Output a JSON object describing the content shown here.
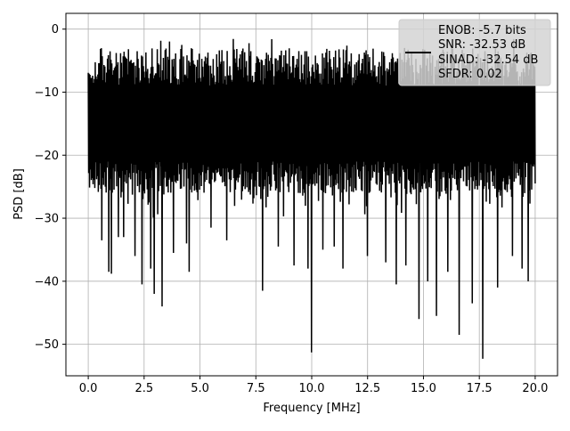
{
  "chart_data": {
    "type": "line",
    "title": "",
    "xlabel": "Frequency [MHz]",
    "ylabel": "PSD [dB]",
    "xlim": [
      -1.0,
      21.0
    ],
    "ylim": [
      -55.0,
      2.5
    ],
    "xticks": [
      0.0,
      2.5,
      5.0,
      7.5,
      10.0,
      12.5,
      15.0,
      17.5,
      20.0
    ],
    "xtick_labels": [
      "0.0",
      "2.5",
      "5.0",
      "7.5",
      "10.0",
      "12.5",
      "15.0",
      "17.5",
      "20.0"
    ],
    "yticks": [
      0,
      -10,
      -20,
      -30,
      -40,
      -50
    ],
    "ytick_labels": [
      "0",
      "−10",
      "−20",
      "−30",
      "−40",
      "−50"
    ],
    "grid": true,
    "line_color": "#000000",
    "legend": {
      "placement": "upper-right",
      "entries": [
        "ENOB: -5.7 bits",
        "SNR: -32.53 dB",
        "SINAD: -32.54 dB",
        "SFDR: 0.02"
      ]
    },
    "series": [
      {
        "x_range": [
          0.0,
          20.0
        ],
        "points": 1024,
        "band_top_db": -3,
        "band_bottom_db": -26,
        "notches": [
          {
            "x": 0.6,
            "y": -33.5
          },
          {
            "x": 0.9,
            "y": -38.5
          },
          {
            "x": 1.05,
            "y": -38.8
          },
          {
            "x": 1.35,
            "y": -33.0
          },
          {
            "x": 1.6,
            "y": -33.0
          },
          {
            "x": 2.1,
            "y": -36.0
          },
          {
            "x": 2.4,
            "y": -40.5
          },
          {
            "x": 2.8,
            "y": -38.0
          },
          {
            "x": 2.95,
            "y": -42.0
          },
          {
            "x": 3.3,
            "y": -44.0
          },
          {
            "x": 3.8,
            "y": -35.5
          },
          {
            "x": 4.4,
            "y": -34.0
          },
          {
            "x": 4.5,
            "y": -38.5
          },
          {
            "x": 5.5,
            "y": -31.5
          },
          {
            "x": 6.2,
            "y": -33.5
          },
          {
            "x": 7.8,
            "y": -41.5
          },
          {
            "x": 8.5,
            "y": -34.5
          },
          {
            "x": 9.2,
            "y": -37.5
          },
          {
            "x": 9.85,
            "y": -38.0
          },
          {
            "x": 10.0,
            "y": -51.3
          },
          {
            "x": 10.5,
            "y": -35.0
          },
          {
            "x": 11.0,
            "y": -34.5
          },
          {
            "x": 11.4,
            "y": -38.0
          },
          {
            "x": 12.5,
            "y": -36.0
          },
          {
            "x": 13.3,
            "y": -37.0
          },
          {
            "x": 13.8,
            "y": -40.5
          },
          {
            "x": 14.2,
            "y": -37.5
          },
          {
            "x": 14.8,
            "y": -46.0
          },
          {
            "x": 15.2,
            "y": -40.0
          },
          {
            "x": 15.6,
            "y": -45.5
          },
          {
            "x": 16.1,
            "y": -38.5
          },
          {
            "x": 16.6,
            "y": -48.5
          },
          {
            "x": 17.2,
            "y": -43.5
          },
          {
            "x": 17.65,
            "y": -52.3
          },
          {
            "x": 18.3,
            "y": -41.0
          },
          {
            "x": 19.0,
            "y": -36.0
          },
          {
            "x": 19.4,
            "y": -38.0
          },
          {
            "x": 19.7,
            "y": -40.0
          }
        ]
      }
    ]
  }
}
